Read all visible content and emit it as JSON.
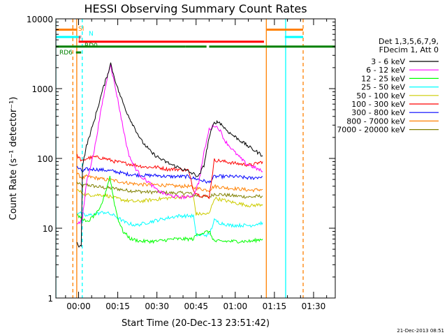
{
  "chart_data": {
    "type": "line",
    "title": "HESSI Observing Summary Count Rates",
    "xlabel": "Start Time (20-Dec-13 23:51:42)",
    "ylabel": "Count Rate (s⁻¹ detector⁻¹)",
    "yscale": "log",
    "ylim": [
      1,
      10000
    ],
    "xlim_minutes": [
      -8.7,
      98.3
    ],
    "x_ticks": [
      {
        "label": "00:00",
        "minutes": 0
      },
      {
        "label": "00:15",
        "minutes": 15
      },
      {
        "label": "00:30",
        "minutes": 30
      },
      {
        "label": "00:45",
        "minutes": 45
      },
      {
        "label": "01:00",
        "minutes": 60
      },
      {
        "label": "01:15",
        "minutes": 75
      },
      {
        "label": "01:30",
        "minutes": 90
      }
    ],
    "y_ticks": [
      {
        "label": "1",
        "value": 1
      },
      {
        "label": "10",
        "value": 10
      },
      {
        "label": "100",
        "value": 100
      },
      {
        "label": "1000",
        "value": 1000
      },
      {
        "label": "10000",
        "value": 10000
      }
    ],
    "grid": false,
    "legend": {
      "placement": "right",
      "header": [
        "Det 1,3,5,6,7,9,",
        "FDecim 1, Att 0"
      ],
      "entries": [
        {
          "label": "3 - 6 keV",
          "color": "#000000"
        },
        {
          "label": "6 - 12 keV",
          "color": "#ff00ff"
        },
        {
          "label": "12 - 25 keV",
          "color": "#00ff00"
        },
        {
          "label": "25 - 50 keV",
          "color": "#00ffff"
        },
        {
          "label": "50 - 100 keV",
          "color": "#cccc00"
        },
        {
          "label": "100 - 300 keV",
          "color": "#ff0000"
        },
        {
          "label": "300 - 800 keV",
          "color": "#0000ff"
        },
        {
          "label": "800 - 7000 keV",
          "color": "#ff8000"
        },
        {
          "label": "7000 - 20000 keV",
          "color": "#808000"
        }
      ]
    },
    "flags": [
      {
        "label": "SI",
        "color": "#ff8000",
        "y": 7000,
        "segments": [
          [
            -8.7,
            -0.5
          ],
          [
            72,
            86
          ]
        ]
      },
      {
        "label": "N",
        "color": "#00ffff",
        "y": 5500,
        "segments": [
          [
            -8.7,
            0.8
          ],
          [
            79,
            86
          ]
        ]
      },
      {
        "label": "F",
        "color": "#ff0000",
        "y": 4700,
        "segments": [
          [
            0,
            71
          ]
        ]
      },
      {
        "label": "RD0",
        "color": "#008000",
        "y": 4000,
        "segments": [
          [
            -8.7,
            41
          ],
          [
            41,
            49
          ],
          [
            50,
            98.3
          ]
        ]
      },
      {
        "label": "RD6",
        "color": "#008000",
        "y": 3300,
        "segments": [
          [
            -1,
            1
          ]
        ]
      }
    ],
    "vlines": [
      {
        "x": -8.7,
        "color": "#00ffff",
        "style": "solid"
      },
      {
        "x": -2.2,
        "color": "#ff8000",
        "style": "dashed"
      },
      {
        "x": -0.7,
        "color": "#ff8000",
        "style": "solid"
      },
      {
        "x": 1.4,
        "color": "#00ffff",
        "style": "dashed"
      },
      {
        "x": 71.9,
        "color": "#ff8000",
        "style": "solid"
      },
      {
        "x": 79.3,
        "color": "#00ffff",
        "style": "solid"
      },
      {
        "x": 86.0,
        "color": "#ff8000",
        "style": "dashed"
      }
    ],
    "series": [
      {
        "name": "3 - 6 keV",
        "color": "#000000",
        "x": [
          -0.6,
          0.5,
          1.0,
          1.5,
          3,
          6,
          9,
          11.5,
          12.3,
          13,
          15,
          18,
          20,
          24,
          28,
          32,
          36,
          40,
          44,
          46,
          48,
          50,
          52,
          54,
          56,
          58,
          62,
          66,
          70.5
        ],
        "y": [
          6,
          5.5,
          5.5,
          80,
          150,
          350,
          900,
          1800,
          2300,
          1800,
          1000,
          500,
          350,
          180,
          120,
          95,
          80,
          70,
          60,
          55,
          80,
          200,
          330,
          330,
          270,
          230,
          180,
          140,
          110
        ]
      },
      {
        "name": "6 - 12 keV",
        "color": "#ff00ff",
        "x": [
          -0.6,
          0.5,
          1.5,
          3,
          6,
          9,
          11.5,
          12.3,
          13,
          15,
          17,
          19,
          21,
          24,
          27,
          30,
          34,
          38,
          42,
          44,
          46,
          48,
          50,
          52,
          54,
          56,
          60,
          64,
          70.5
        ],
        "y": [
          12,
          12,
          14,
          45,
          130,
          600,
          1800,
          2300,
          1600,
          700,
          280,
          120,
          80,
          55,
          45,
          35,
          30,
          28,
          28,
          30,
          45,
          120,
          260,
          300,
          260,
          180,
          120,
          85,
          65
        ]
      },
      {
        "name": "12 - 25 keV",
        "color": "#00ff00",
        "x": [
          -0.6,
          1.5,
          3,
          5,
          8,
          10,
          12,
          13.5,
          15,
          17,
          20,
          24,
          30,
          36,
          40,
          44,
          45,
          47,
          50,
          52,
          56,
          60,
          66,
          70.5
        ],
        "y": [
          15,
          14,
          12,
          14,
          18,
          30,
          55,
          25,
          14,
          9,
          7,
          6.5,
          6.5,
          7,
          7,
          7,
          8,
          8.5,
          9,
          6.5,
          6.5,
          6.5,
          6.5,
          7
        ]
      },
      {
        "name": "25 - 50 keV",
        "color": "#00ffff",
        "x": [
          -0.6,
          1.5,
          3,
          6,
          10,
          14,
          18,
          22,
          26,
          30,
          34,
          38,
          42,
          44,
          45,
          50,
          52,
          54,
          58,
          62,
          66,
          70.5
        ],
        "y": [
          17,
          16,
          15,
          16,
          17,
          15,
          12,
          11,
          12,
          13,
          14,
          15,
          15,
          15,
          8,
          8,
          13,
          12,
          11,
          11,
          11,
          12
        ]
      },
      {
        "name": "50 - 100 keV",
        "color": "#cccc00",
        "x": [
          -0.6,
          1.5,
          3,
          6,
          10,
          14,
          18,
          22,
          26,
          30,
          34,
          38,
          42,
          44,
          45,
          50,
          52,
          56,
          60,
          66,
          70.5
        ],
        "y": [
          35,
          32,
          30,
          30,
          30,
          27,
          25,
          24,
          25,
          26,
          27,
          28,
          28,
          28,
          16,
          16,
          27,
          25,
          23,
          21,
          22
        ]
      },
      {
        "name": "100 - 300 keV",
        "color": "#ff0000",
        "x": [
          -0.6,
          1.5,
          3,
          6,
          10,
          14,
          18,
          22,
          26,
          30,
          34,
          38,
          42,
          44,
          46,
          50,
          52,
          56,
          60,
          66,
          70.5
        ],
        "y": [
          110,
          90,
          100,
          105,
          100,
          90,
          85,
          80,
          75,
          75,
          70,
          70,
          68,
          35,
          30,
          28,
          95,
          90,
          85,
          80,
          90
        ]
      },
      {
        "name": "300 - 800 keV",
        "color": "#0000ff",
        "x": [
          -0.6,
          1.5,
          3,
          6,
          10,
          14,
          18,
          22,
          26,
          30,
          34,
          38,
          42,
          44,
          46,
          50,
          52,
          56,
          60,
          66,
          70.5
        ],
        "y": [
          75,
          65,
          70,
          70,
          68,
          65,
          60,
          58,
          57,
          57,
          55,
          55,
          55,
          52,
          50,
          45,
          55,
          55,
          55,
          52,
          55
        ]
      },
      {
        "name": "800 - 7000 keV",
        "color": "#ff8000",
        "x": [
          -0.6,
          1.5,
          3,
          6,
          10,
          14,
          18,
          22,
          26,
          30,
          34,
          38,
          42,
          44,
          46,
          50,
          52,
          56,
          60,
          66,
          70.5
        ],
        "y": [
          60,
          52,
          55,
          53,
          50,
          48,
          45,
          43,
          42,
          42,
          41,
          40,
          40,
          38,
          37,
          35,
          40,
          38,
          37,
          35,
          36
        ]
      },
      {
        "name": "7000 - 20000 keV",
        "color": "#808000",
        "x": [
          -0.6,
          1.5,
          3,
          6,
          10,
          14,
          18,
          22,
          26,
          30,
          34,
          38,
          42,
          44,
          46,
          50,
          52,
          56,
          60,
          66,
          70.5
        ],
        "y": [
          45,
          40,
          42,
          40,
          38,
          37,
          35,
          34,
          33,
          33,
          32,
          32,
          32,
          30,
          29,
          28,
          31,
          30,
          29,
          28,
          29
        ]
      }
    ]
  },
  "footer": {
    "timestamp": "21-Dec-2013 08:51"
  }
}
